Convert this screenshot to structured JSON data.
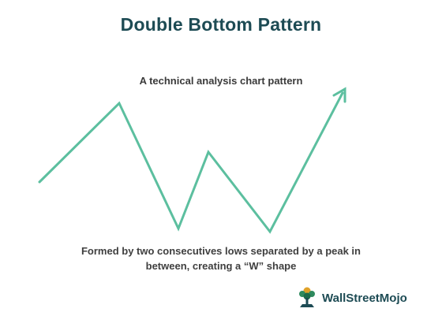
{
  "title": "Double Bottom Pattern",
  "subtitle": "A technical analysis chart pattern",
  "caption": {
    "line1": "Formed by two consecutives lows separated by a peak in",
    "line2": "between, creating a “W” shape"
  },
  "logo": {
    "text": "WallStreetMojo",
    "icon": "wallstreetmojo-logo-icon"
  },
  "colors": {
    "line": "#5cbf9f",
    "title": "#1d4b54",
    "text": "#3f3f3f"
  }
}
